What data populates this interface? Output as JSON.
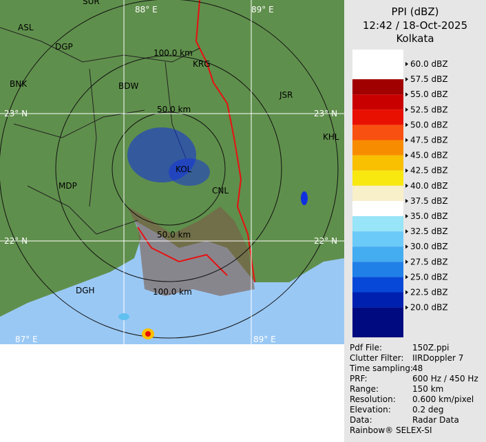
{
  "header": {
    "title": "PPI (dBZ)",
    "time": "12:42 / 18-Oct-2025",
    "station": "Kolkata"
  },
  "legend": {
    "items": [
      {
        "label": "60.0 dBZ",
        "color": "#ffffff"
      },
      {
        "label": "57.5 dBZ",
        "color": "#a00000"
      },
      {
        "label": "55.0 dBZ",
        "color": "#c80000"
      },
      {
        "label": "52.5 dBZ",
        "color": "#e81000"
      },
      {
        "label": "50.0 dBZ",
        "color": "#f85010"
      },
      {
        "label": "47.5 dBZ",
        "color": "#f88c00"
      },
      {
        "label": "45.0 dBZ",
        "color": "#f8c000"
      },
      {
        "label": "42.5 dBZ",
        "color": "#f8e810"
      },
      {
        "label": "40.0 dBZ",
        "color": "#f8f0c8"
      },
      {
        "label": "37.5 dBZ",
        "color": "#ffffff"
      },
      {
        "label": "35.0 dBZ",
        "color": "#98e4f8"
      },
      {
        "label": "32.5 dBZ",
        "color": "#6ccaf8"
      },
      {
        "label": "30.0 dBZ",
        "color": "#44acf0"
      },
      {
        "label": "27.5 dBZ",
        "color": "#2080e8"
      },
      {
        "label": "25.0 dBZ",
        "color": "#0848d8"
      },
      {
        "label": "22.5 dBZ",
        "color": "#0020b0"
      },
      {
        "label": "20.0 dBZ",
        "color": "#000a80"
      }
    ]
  },
  "map": {
    "labels": [
      "ASL",
      "DGP",
      "BNK",
      "BDW",
      "KRG",
      "JSR",
      "KHL",
      "MDP",
      "DGH",
      "KOL",
      "CNL",
      "SUR",
      "100.0 km",
      "50.0 km",
      "50.0 km",
      "100.0 km",
      "23° N",
      "23° N",
      "22° N",
      "22° N",
      "88° E",
      "89° E",
      "87° E",
      "89° E"
    ]
  },
  "info": {
    "rows": [
      [
        "Pdf File:",
        "150Z.ppi"
      ],
      [
        "Clutter Filter:",
        "IIRDoppler 7"
      ],
      [
        "Time sampling:",
        "48"
      ],
      [
        "PRF:",
        "600 Hz / 450 Hz"
      ],
      [
        "Range:",
        "150 km"
      ],
      [
        "Resolution:",
        "0.600 km/pixel"
      ],
      [
        "Elevation:",
        "0.2 deg"
      ],
      [
        "Data:",
        "Radar Data"
      ]
    ],
    "footer": "Rainbow® SELEX-SI"
  }
}
